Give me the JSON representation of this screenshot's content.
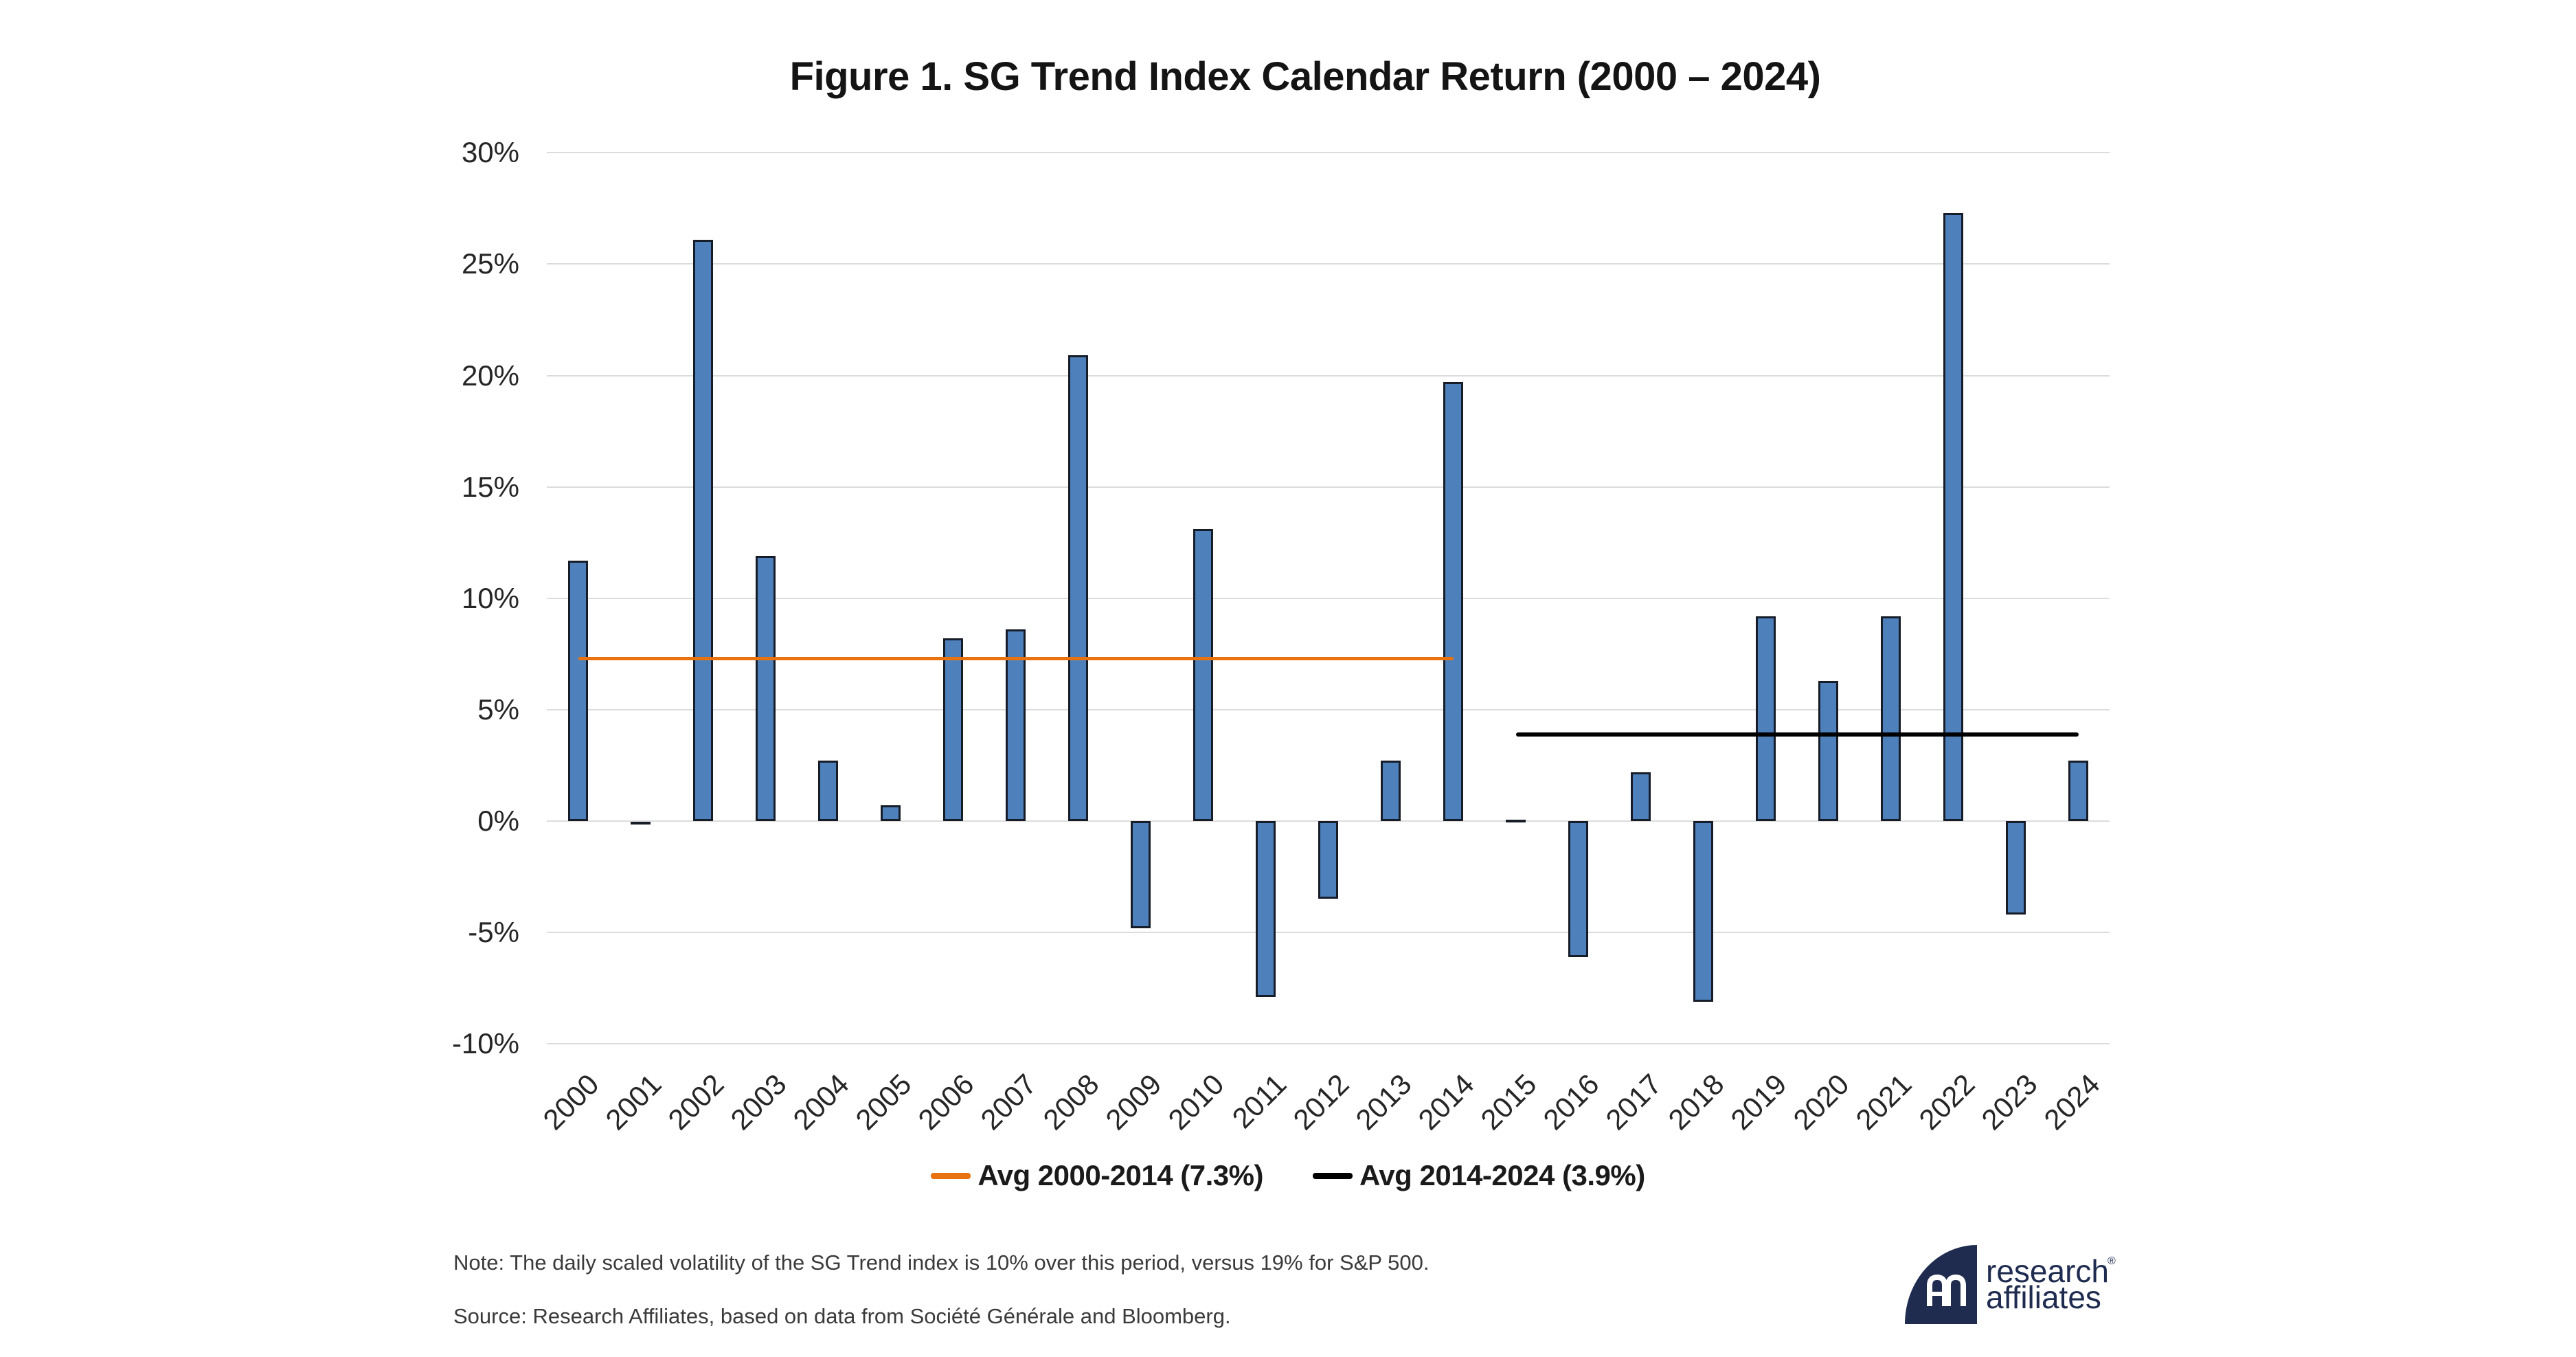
{
  "title": "Figure 1. SG Trend Index Calendar Return (2000 – 2024)",
  "chart_data": {
    "type": "bar",
    "series_name": "SG Trend Index calendar return",
    "categories": [
      2000,
      2001,
      2002,
      2003,
      2004,
      2005,
      2006,
      2007,
      2008,
      2009,
      2010,
      2011,
      2012,
      2013,
      2014,
      2015,
      2016,
      2017,
      2018,
      2019,
      2020,
      2021,
      2022,
      2023,
      2024
    ],
    "values": [
      11.7,
      -0.1,
      26.1,
      11.9,
      2.7,
      0.7,
      8.2,
      8.6,
      20.9,
      -4.8,
      13.1,
      -7.9,
      -3.5,
      2.7,
      19.7,
      0.0,
      -6.1,
      2.2,
      -8.1,
      9.2,
      6.3,
      9.2,
      27.3,
      -4.2,
      2.7
    ],
    "xlabel": "",
    "ylabel": "",
    "ylim": [
      -10,
      30
    ],
    "ytick_step": 5,
    "ytick_labels": [
      "30%",
      "25%",
      "20%",
      "15%",
      "10%",
      "5%",
      "0%",
      "-5%",
      "-10%"
    ],
    "ytick_values": [
      30,
      25,
      20,
      15,
      10,
      5,
      0,
      -5,
      -10
    ],
    "grid": true,
    "bar_color": "#4E81BC",
    "bar_border_color": "#161C28",
    "gridline_color": "#dcdcdc",
    "avg_lines": [
      {
        "name": "avg-2000-2014",
        "label": "Avg 2000-2014 (7.3%)",
        "value": 7.3,
        "color": "#E8730E",
        "from_year": 2000,
        "to_year": 2014,
        "thickness": 5
      },
      {
        "name": "avg-2014-2024",
        "label": "Avg 2014-2024 (3.9%)",
        "value": 3.9,
        "color": "#000000",
        "from_year": 2015,
        "to_year": 2024,
        "thickness": 6
      }
    ],
    "legend_position": "bottom-center"
  },
  "note": "Note: The daily scaled volatility of the SG Trend index is 10% over this period, versus 19% for S&P 500.",
  "source": "Source: Research Affiliates, based on data from Société Générale and Bloomberg.",
  "logo": {
    "line1": "research",
    "line2": "affiliates",
    "registered": "®",
    "color": "#1F2C50"
  }
}
